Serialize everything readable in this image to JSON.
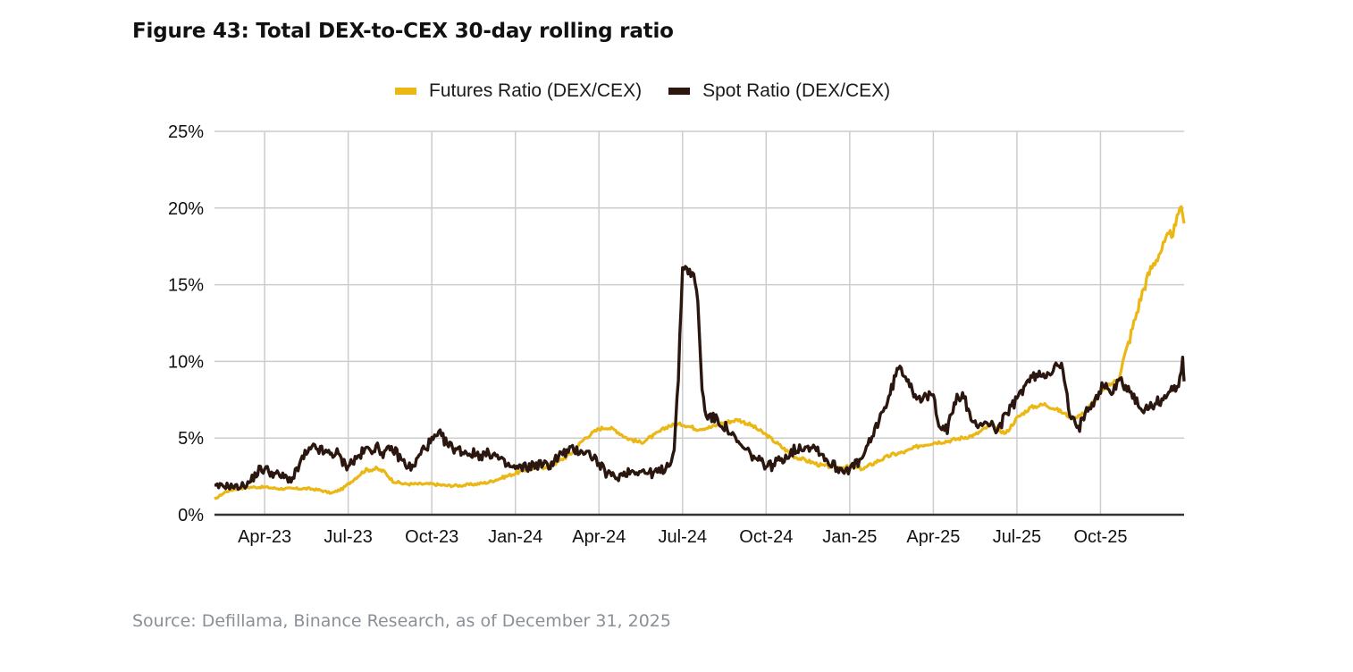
{
  "figure": {
    "title": "Figure 43: Total DEX-to-CEX 30-day rolling ratio",
    "source": "Source: Defillama, Binance Research, as of December 31, 2025"
  },
  "chart_data": {
    "type": "line",
    "title": "Figure 43: Total DEX-to-CEX 30-day rolling ratio",
    "xlabel": "",
    "ylabel": "",
    "x_unit": "months since Jan-23 (0 = Jan 1, 2023)",
    "xlim": [
      1.2,
      36.0
    ],
    "ylim": [
      0,
      25
    ],
    "y_ticks": [
      0,
      5,
      10,
      15,
      20,
      25
    ],
    "y_tick_labels": [
      "0%",
      "5%",
      "10%",
      "15%",
      "20%",
      "25%"
    ],
    "x_ticks": [
      3,
      6,
      9,
      12,
      15,
      18,
      21,
      24,
      27,
      30,
      33
    ],
    "x_tick_labels": [
      "Apr-23",
      "Jul-23",
      "Oct-23",
      "Jan-24",
      "Apr-24",
      "Jul-24",
      "Oct-24",
      "Jan-25",
      "Apr-25",
      "Jul-25",
      "Oct-25"
    ],
    "grid": true,
    "legend_position": "top-center",
    "series": [
      {
        "name": "Futures Ratio (DEX/CEX)",
        "color": "#EAB714",
        "x": [
          1.2,
          1.6,
          2.0,
          2.5,
          3.0,
          3.5,
          4.0,
          4.6,
          5.0,
          5.4,
          5.8,
          6.2,
          6.6,
          7.0,
          7.3,
          7.6,
          8.0,
          8.5,
          9.0,
          9.5,
          10.0,
          10.6,
          11.0,
          11.5,
          12.0,
          12.5,
          13.0,
          13.5,
          14.0,
          14.5,
          15.0,
          15.3,
          15.6,
          16.0,
          16.5,
          17.0,
          17.5,
          18.0,
          18.5,
          19.0,
          19.5,
          20.0,
          20.5,
          21.0,
          21.5,
          22.0,
          22.5,
          23.0,
          23.5,
          24.0,
          24.5,
          25.0,
          25.5,
          26.0,
          26.5,
          27.0,
          27.5,
          28.0,
          28.5,
          29.0,
          29.3,
          29.6,
          30.0,
          30.5,
          31.0,
          31.5,
          32.0,
          32.4,
          32.8,
          33.2,
          33.6,
          33.9,
          34.2,
          34.5,
          34.8,
          35.1,
          35.4,
          35.7,
          35.85,
          36.0
        ],
        "values": [
          1.0,
          1.5,
          1.7,
          1.8,
          1.8,
          1.7,
          1.7,
          1.7,
          1.6,
          1.4,
          1.7,
          2.3,
          2.9,
          3.0,
          2.8,
          2.2,
          2.0,
          2.0,
          2.0,
          1.9,
          1.9,
          2.0,
          2.1,
          2.4,
          2.7,
          3.0,
          3.1,
          3.4,
          4.0,
          5.0,
          5.6,
          5.7,
          5.5,
          5.0,
          4.7,
          5.2,
          5.8,
          5.9,
          5.6,
          5.7,
          6.0,
          6.2,
          5.8,
          5.2,
          4.5,
          3.8,
          3.5,
          3.2,
          3.1,
          3.1,
          3.0,
          3.5,
          3.9,
          4.1,
          4.5,
          4.7,
          4.8,
          5.0,
          5.2,
          5.8,
          5.6,
          5.3,
          6.3,
          7.0,
          7.2,
          6.8,
          6.3,
          6.6,
          7.5,
          8.3,
          8.8,
          10.5,
          12.5,
          14.5,
          16.0,
          17.0,
          18.0,
          18.7,
          20.2,
          19.0
        ]
      },
      {
        "name": "Spot Ratio (DEX/CEX)",
        "color": "#2B1710",
        "x": [
          1.2,
          1.6,
          2.0,
          2.4,
          2.8,
          3.0,
          3.3,
          3.6,
          4.0,
          4.4,
          4.8,
          5.2,
          5.6,
          5.9,
          6.2,
          6.6,
          7.0,
          7.3,
          7.6,
          8.0,
          8.3,
          8.7,
          9.0,
          9.3,
          9.6,
          10.0,
          10.4,
          10.8,
          11.2,
          11.6,
          12.0,
          12.4,
          12.8,
          13.2,
          13.6,
          14.0,
          14.4,
          14.8,
          15.2,
          15.6,
          16.0,
          16.4,
          16.8,
          17.2,
          17.5,
          17.7,
          17.85,
          18.0,
          18.2,
          18.4,
          18.55,
          18.7,
          18.85,
          19.0,
          19.3,
          19.6,
          20.0,
          20.4,
          20.8,
          21.2,
          21.6,
          22.0,
          22.4,
          22.8,
          23.2,
          23.6,
          24.0,
          24.4,
          24.8,
          25.1,
          25.4,
          25.7,
          26.0,
          26.3,
          26.6,
          27.0,
          27.2,
          27.5,
          27.8,
          28.1,
          28.4,
          28.7,
          29.0,
          29.3,
          29.6,
          30.0,
          30.3,
          30.6,
          31.0,
          31.3,
          31.6,
          31.9,
          32.2,
          32.5,
          32.8,
          33.1,
          33.4,
          33.7,
          34.0,
          34.3,
          34.6,
          34.9,
          35.2,
          35.5,
          35.8,
          35.95,
          36.0
        ],
        "values": [
          1.8,
          1.9,
          1.8,
          2.0,
          2.9,
          3.0,
          2.7,
          2.5,
          2.3,
          3.8,
          4.4,
          4.0,
          4.0,
          3.2,
          3.5,
          4.2,
          4.4,
          4.0,
          4.3,
          3.4,
          3.0,
          4.3,
          4.8,
          5.2,
          4.5,
          4.2,
          4.0,
          3.9,
          4.0,
          3.3,
          3.0,
          3.1,
          3.3,
          3.2,
          3.9,
          4.2,
          4.2,
          3.8,
          2.8,
          2.4,
          2.8,
          2.9,
          2.7,
          2.8,
          3.3,
          4.2,
          9.0,
          16.2,
          16.0,
          15.5,
          14.0,
          8.0,
          6.5,
          6.4,
          6.1,
          5.6,
          4.6,
          4.0,
          3.4,
          3.2,
          3.7,
          4.2,
          4.5,
          4.4,
          3.5,
          3.0,
          3.0,
          3.5,
          5.0,
          6.5,
          7.5,
          9.5,
          9.2,
          8.0,
          7.5,
          7.8,
          6.0,
          5.5,
          7.5,
          7.8,
          5.8,
          6.0,
          6.0,
          5.5,
          6.5,
          7.5,
          8.5,
          9.0,
          9.2,
          9.5,
          9.8,
          6.5,
          5.5,
          7.0,
          7.5,
          8.5,
          8.0,
          8.8,
          8.2,
          7.3,
          6.8,
          7.2,
          7.5,
          8.0,
          8.5,
          10.2,
          8.7
        ]
      }
    ]
  }
}
